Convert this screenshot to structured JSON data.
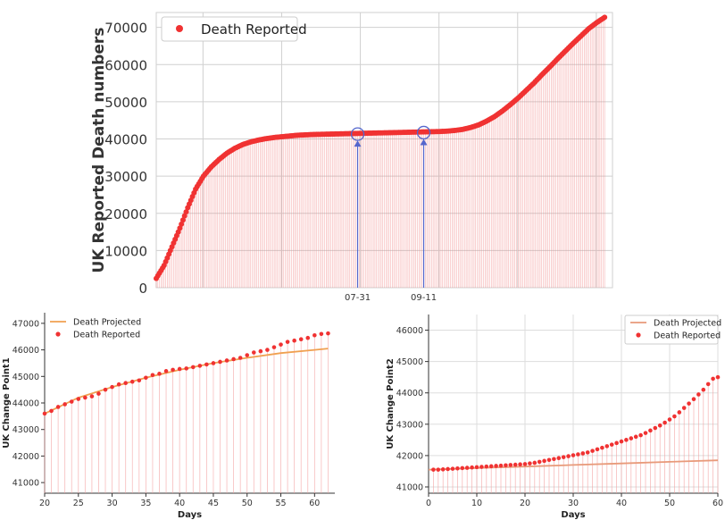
{
  "chart_data": [
    {
      "type": "scatter",
      "title": "",
      "xlabel": "",
      "ylabel": "UK Reported Death numbers",
      "ylim": [
        0,
        74000
      ],
      "xlim": [
        0,
        290
      ],
      "grid": true,
      "legend": {
        "position": "top-left",
        "entries": [
          "Death Reported"
        ]
      },
      "yticks": [
        0,
        10000,
        20000,
        30000,
        40000,
        50000,
        60000,
        70000
      ],
      "xtick_labels": [
        {
          "x": 128,
          "label": "07-31"
        },
        {
          "x": 170,
          "label": "09-11"
        }
      ],
      "annotations": [
        {
          "label": "07-31",
          "x": 128,
          "y": 41300
        },
        {
          "label": "09-11",
          "x": 170,
          "y": 41700
        }
      ],
      "series": [
        {
          "name": "Death Reported",
          "color": "#f03232",
          "x": [
            0,
            5,
            10,
            15,
            20,
            25,
            30,
            35,
            40,
            45,
            50,
            55,
            60,
            65,
            70,
            75,
            80,
            85,
            90,
            95,
            100,
            105,
            110,
            115,
            120,
            125,
            130,
            135,
            140,
            145,
            150,
            155,
            160,
            165,
            170,
            175,
            180,
            185,
            190,
            195,
            200,
            205,
            210,
            215,
            220,
            225,
            230,
            235,
            240,
            245,
            250,
            255,
            260,
            265,
            270,
            275,
            280,
            285
          ],
          "y": [
            2500,
            6000,
            11000,
            16000,
            21500,
            26500,
            30000,
            32500,
            34500,
            36200,
            37500,
            38500,
            39200,
            39700,
            40100,
            40400,
            40600,
            40800,
            41000,
            41100,
            41200,
            41250,
            41300,
            41350,
            41400,
            41450,
            41500,
            41550,
            41600,
            41650,
            41700,
            41750,
            41800,
            41850,
            41900,
            41950,
            42000,
            42100,
            42300,
            42600,
            43100,
            43800,
            44800,
            46000,
            47500,
            49200,
            51000,
            53000,
            55000,
            57200,
            59300,
            61500,
            63600,
            65700,
            67700,
            69700,
            71300,
            72700
          ]
        }
      ]
    },
    {
      "type": "scatter",
      "title": "",
      "xlabel": "Days",
      "ylabel": "UK Change Point1",
      "xlim": [
        20,
        63
      ],
      "ylim": [
        40600,
        47400
      ],
      "xticks": [
        20,
        25,
        30,
        35,
        40,
        45,
        50,
        55,
        60
      ],
      "yticks": [
        41000,
        42000,
        43000,
        44000,
        45000,
        46000,
        47000
      ],
      "grid": false,
      "legend": {
        "position": "top-left",
        "entries": [
          "Death Projected",
          "Death Reported"
        ]
      },
      "series": [
        {
          "name": "Death Projected",
          "color": "#f0a050",
          "x": [
            20,
            25,
            30,
            35,
            40,
            45,
            50,
            55,
            60,
            62
          ],
          "y": [
            43600,
            44200,
            44600,
            44950,
            45250,
            45500,
            45700,
            45880,
            46000,
            46050
          ]
        },
        {
          "name": "Death Reported",
          "color": "#f03232",
          "x": [
            20,
            21,
            22,
            23,
            24,
            25,
            26,
            27,
            28,
            29,
            30,
            31,
            32,
            33,
            34,
            35,
            36,
            37,
            38,
            39,
            40,
            41,
            42,
            43,
            44,
            45,
            46,
            47,
            48,
            49,
            50,
            51,
            52,
            53,
            54,
            55,
            56,
            57,
            58,
            59,
            60,
            61,
            62
          ],
          "y": [
            43600,
            43700,
            43850,
            43950,
            44050,
            44150,
            44200,
            44250,
            44350,
            44500,
            44600,
            44700,
            44750,
            44800,
            44850,
            44950,
            45050,
            45100,
            45200,
            45250,
            45280,
            45300,
            45350,
            45400,
            45450,
            45500,
            45550,
            45600,
            45650,
            45700,
            45800,
            45900,
            45950,
            46000,
            46100,
            46200,
            46300,
            46350,
            46400,
            46450,
            46550,
            46600,
            46620
          ]
        }
      ]
    },
    {
      "type": "scatter",
      "title": "",
      "xlabel": "Days",
      "ylabel": "UK Change Point2",
      "xlim": [
        0,
        60
      ],
      "ylim": [
        40800,
        46500
      ],
      "xticks": [
        0,
        10,
        20,
        30,
        40,
        50,
        60
      ],
      "yticks": [
        41000,
        42000,
        43000,
        44000,
        45000,
        46000
      ],
      "grid": true,
      "legend": {
        "position": "top-right",
        "entries": [
          "Death Projected",
          "Death Reported"
        ]
      },
      "series": [
        {
          "name": "Death Projected",
          "color": "#e89a7a",
          "x": [
            0,
            10,
            20,
            30,
            40,
            50,
            60
          ],
          "y": [
            41550,
            41600,
            41650,
            41700,
            41750,
            41800,
            41850
          ]
        },
        {
          "name": "Death Reported",
          "color": "#f03232",
          "x": [
            1,
            2,
            3,
            4,
            5,
            6,
            7,
            8,
            9,
            10,
            11,
            12,
            13,
            14,
            15,
            16,
            17,
            18,
            19,
            20,
            21,
            22,
            23,
            24,
            25,
            26,
            27,
            28,
            29,
            30,
            31,
            32,
            33,
            34,
            35,
            36,
            37,
            38,
            39,
            40,
            41,
            42,
            43,
            44,
            45,
            46,
            47,
            48,
            49,
            50,
            51,
            52,
            53,
            54,
            55,
            56,
            57,
            58,
            59,
            60
          ],
          "y": [
            41550,
            41550,
            41560,
            41570,
            41580,
            41590,
            41600,
            41610,
            41620,
            41630,
            41640,
            41650,
            41660,
            41670,
            41680,
            41690,
            41700,
            41710,
            41720,
            41730,
            41750,
            41770,
            41800,
            41830,
            41860,
            41890,
            41920,
            41950,
            41980,
            42010,
            42040,
            42070,
            42100,
            42150,
            42200,
            42250,
            42300,
            42350,
            42400,
            42450,
            42500,
            42550,
            42600,
            42650,
            42720,
            42800,
            42880,
            42960,
            43050,
            43150,
            43250,
            43380,
            43520,
            43660,
            43800,
            43950,
            44100,
            44280,
            44450,
            44500
          ]
        }
      ]
    }
  ]
}
